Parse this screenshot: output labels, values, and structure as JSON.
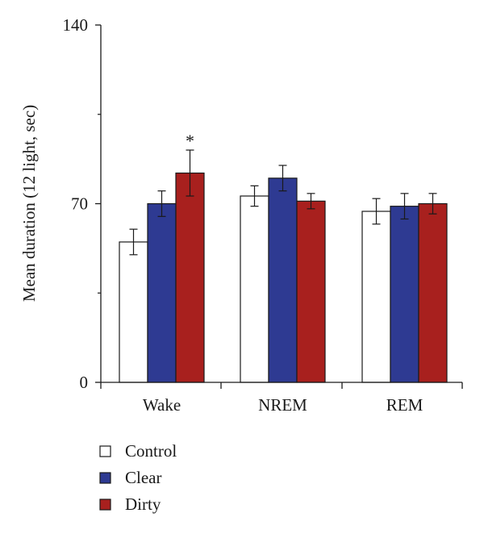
{
  "chart_data": {
    "type": "bar",
    "ylabel": "Mean duration (12 light, sec)",
    "ylim": [
      0,
      140
    ],
    "yticks": [
      0,
      70,
      140
    ],
    "categories": [
      "Wake",
      "NREM",
      "REM"
    ],
    "series": [
      {
        "name": "Control",
        "color": "#ffffff",
        "values": [
          55,
          73,
          67
        ],
        "errors": [
          5,
          4,
          5
        ]
      },
      {
        "name": "Clear",
        "color": "#2e3a92",
        "values": [
          70,
          80,
          69
        ],
        "errors": [
          5,
          5,
          5
        ]
      },
      {
        "name": "Dirty",
        "color": "#a8201e",
        "values": [
          82,
          71,
          70
        ],
        "errors": [
          9,
          3,
          4
        ]
      }
    ],
    "annotations": [
      {
        "text": "*",
        "category": "Wake",
        "series": "Dirty"
      }
    ],
    "legend": {
      "placement": "bottom-left"
    },
    "grid": false
  }
}
